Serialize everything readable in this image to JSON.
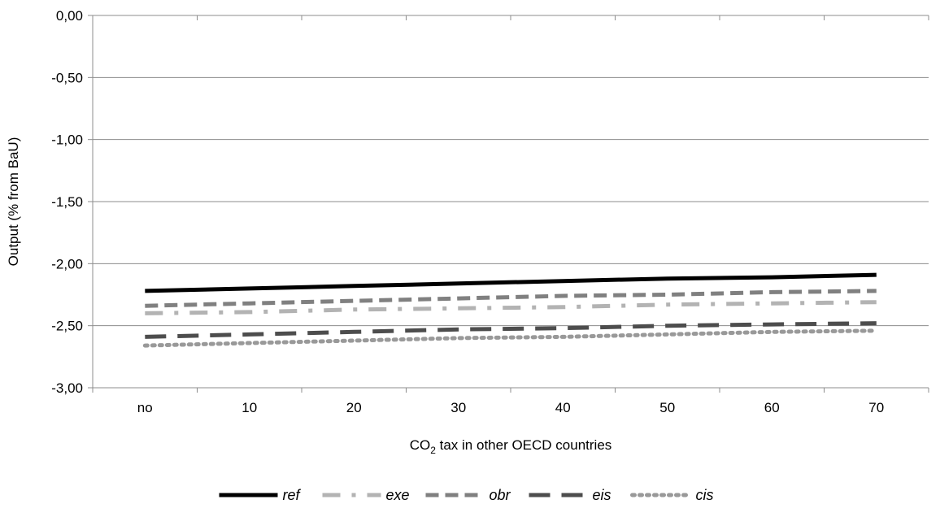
{
  "chart_data": {
    "type": "line",
    "title": "",
    "xlabel_main": "CO",
    "xlabel_sub": "2",
    "xlabel_rest": " tax in other OECD countries",
    "ylabel": "Output  (% from BaU)",
    "categories": [
      "no",
      "10",
      "20",
      "30",
      "40",
      "50",
      "60",
      "70"
    ],
    "ylim": [
      -3.0,
      0.0
    ],
    "yticks": [
      "0,00",
      "-0,50",
      "-1,00",
      "-1,50",
      "-2,00",
      "-2,50",
      "-3,00"
    ],
    "ytick_values": [
      0.0,
      -0.5,
      -1.0,
      -1.5,
      -2.0,
      -2.5,
      -3.0
    ],
    "grid": "horizontal",
    "legend_position": "bottom",
    "series": [
      {
        "name": "ref",
        "values": [
          -2.22,
          -2.2,
          -2.18,
          -2.16,
          -2.14,
          -2.12,
          -2.11,
          -2.09
        ],
        "color": "#000000",
        "style": "solid"
      },
      {
        "name": "exe",
        "values": [
          -2.4,
          -2.39,
          -2.37,
          -2.36,
          -2.35,
          -2.33,
          -2.32,
          -2.31
        ],
        "color": "#b3b3b3",
        "style": "dash-dot"
      },
      {
        "name": "obr",
        "values": [
          -2.34,
          -2.32,
          -2.3,
          -2.28,
          -2.26,
          -2.25,
          -2.23,
          -2.22
        ],
        "color": "#808080",
        "style": "dash"
      },
      {
        "name": "eis",
        "values": [
          -2.59,
          -2.57,
          -2.55,
          -2.53,
          -2.52,
          -2.5,
          -2.49,
          -2.48
        ],
        "color": "#4d4d4d",
        "style": "long-dash"
      },
      {
        "name": "cis",
        "values": [
          -2.66,
          -2.64,
          -2.62,
          -2.6,
          -2.59,
          -2.57,
          -2.55,
          -2.54
        ],
        "color": "#999999",
        "style": "dot"
      }
    ]
  }
}
